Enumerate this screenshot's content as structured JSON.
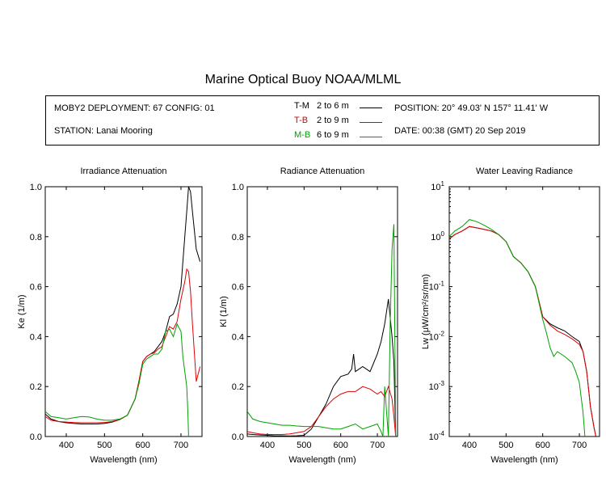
{
  "page_title": "Marine Optical Buoy NOAA/MLML",
  "info": {
    "deployment": "MOBY2 DEPLOYMENT: 67 CONFIG: 01",
    "station": "STATION: Lanai Mooring",
    "position": "POSITION: 20° 49.03' N   157° 11.41' W",
    "date": "DATE: 00:38 (GMT) 20 Sep 2019",
    "legend": [
      {
        "code": "T-M",
        "range": "2 to 6  m",
        "color": "#000000"
      },
      {
        "code": "T-B",
        "range": "2 to 9  m",
        "color": "#e00000"
      },
      {
        "code": "M-B",
        "range": "6 to 9  m",
        "color": "#00a000"
      }
    ]
  },
  "chart_data": [
    {
      "type": "line",
      "title": "Irradiance Attenuation",
      "xlabel": "Wavelength (nm)",
      "ylabel": "Ke  (1/m)",
      "xlim": [
        345,
        755
      ],
      "ylim": [
        0,
        1
      ],
      "xticks": [
        "400",
        "500",
        "600",
        "700"
      ],
      "yticks": [
        "0.0",
        "0.2",
        "0.4",
        "0.6",
        "0.8",
        "1.0"
      ],
      "series": [
        {
          "name": "T-M",
          "color": "#000000",
          "x": [
            345,
            360,
            380,
            400,
            420,
            440,
            460,
            480,
            500,
            520,
            540,
            560,
            580,
            590,
            600,
            610,
            620,
            630,
            640,
            650,
            660,
            670,
            680,
            690,
            700,
            710,
            715,
            720,
            725,
            730,
            740,
            750
          ],
          "y": [
            0.09,
            0.07,
            0.06,
            0.055,
            0.052,
            0.05,
            0.05,
            0.05,
            0.052,
            0.058,
            0.068,
            0.085,
            0.15,
            0.22,
            0.3,
            0.32,
            0.33,
            0.34,
            0.36,
            0.38,
            0.42,
            0.48,
            0.49,
            0.53,
            0.6,
            0.8,
            0.9,
            1.0,
            0.98,
            0.9,
            0.75,
            0.7
          ]
        },
        {
          "name": "T-B",
          "color": "#e00000",
          "x": [
            345,
            360,
            380,
            400,
            420,
            440,
            460,
            480,
            500,
            520,
            540,
            560,
            580,
            590,
            600,
            610,
            620,
            630,
            640,
            650,
            660,
            670,
            680,
            690,
            700,
            710,
            715,
            720,
            725,
            730,
            740,
            750
          ],
          "y": [
            0.08,
            0.065,
            0.06,
            0.058,
            0.056,
            0.055,
            0.055,
            0.055,
            0.056,
            0.06,
            0.068,
            0.085,
            0.15,
            0.22,
            0.3,
            0.32,
            0.33,
            0.335,
            0.35,
            0.36,
            0.4,
            0.44,
            0.43,
            0.46,
            0.55,
            0.62,
            0.67,
            0.66,
            0.58,
            0.45,
            0.22,
            0.28
          ]
        },
        {
          "name": "M-B",
          "color": "#00a000",
          "x": [
            345,
            360,
            380,
            400,
            420,
            440,
            460,
            480,
            500,
            520,
            540,
            560,
            580,
            590,
            600,
            610,
            620,
            630,
            640,
            650,
            660,
            670,
            680,
            690,
            700,
            705,
            710,
            715,
            718,
            720
          ],
          "y": [
            0.1,
            0.08,
            0.075,
            0.07,
            0.075,
            0.08,
            0.078,
            0.07,
            0.065,
            0.065,
            0.07,
            0.085,
            0.15,
            0.21,
            0.29,
            0.31,
            0.32,
            0.33,
            0.33,
            0.35,
            0.42,
            0.43,
            0.4,
            0.45,
            0.42,
            0.32,
            0.26,
            0.2,
            0.1,
            0.0
          ]
        }
      ]
    },
    {
      "type": "line",
      "title": "Radiance Attenuation",
      "xlabel": "Wavelength (nm)",
      "ylabel": "Kl  (1/m)",
      "xlim": [
        345,
        755
      ],
      "ylim": [
        0,
        1
      ],
      "xticks": [
        "400",
        "500",
        "600",
        "700"
      ],
      "yticks": [
        "0.0",
        "0.2",
        "0.4",
        "0.6",
        "0.8",
        "1.0"
      ],
      "series": [
        {
          "name": "T-M",
          "color": "#000000",
          "x": [
            345,
            360,
            380,
            400,
            420,
            440,
            460,
            480,
            500,
            520,
            540,
            560,
            580,
            600,
            620,
            630,
            635,
            640,
            660,
            680,
            700,
            710,
            720,
            730,
            740,
            745,
            750
          ],
          "y": [
            0.01,
            0.008,
            0.006,
            0.005,
            0.003,
            0.003,
            0.002,
            0.003,
            0.005,
            0.03,
            0.08,
            0.13,
            0.2,
            0.24,
            0.25,
            0.27,
            0.33,
            0.26,
            0.28,
            0.26,
            0.33,
            0.38,
            0.45,
            0.55,
            0.4,
            0.3,
            0.0
          ]
        },
        {
          "name": "T-B",
          "color": "#e00000",
          "x": [
            345,
            360,
            380,
            400,
            420,
            440,
            460,
            480,
            500,
            520,
            540,
            560,
            580,
            600,
            620,
            640,
            660,
            680,
            700,
            710,
            720,
            730,
            740,
            745,
            750
          ],
          "y": [
            0.02,
            0.015,
            0.01,
            0.008,
            0.008,
            0.008,
            0.01,
            0.015,
            0.02,
            0.04,
            0.08,
            0.12,
            0.15,
            0.17,
            0.18,
            0.18,
            0.2,
            0.19,
            0.17,
            0.18,
            0.16,
            0.2,
            0.15,
            0.08,
            0.0
          ]
        },
        {
          "name": "M-B",
          "color": "#00a000",
          "x": [
            345,
            360,
            380,
            400,
            420,
            440,
            460,
            480,
            500,
            520,
            540,
            560,
            580,
            600,
            620,
            640,
            660,
            680,
            700,
            710,
            715,
            720,
            730,
            735,
            740,
            745,
            750
          ],
          "y": [
            0.1,
            0.07,
            0.06,
            0.055,
            0.05,
            0.045,
            0.045,
            0.042,
            0.04,
            0.04,
            0.04,
            0.035,
            0.03,
            0.03,
            0.04,
            0.05,
            0.03,
            0.04,
            0.05,
            0.02,
            0.0,
            0.2,
            0.0,
            0.45,
            0.75,
            0.85,
            0.0
          ]
        }
      ]
    },
    {
      "type": "line",
      "title": "Water Leaving Radiance",
      "xlabel": "Wavelength (nm)",
      "ylabel": "Lw  (μW/cm²/sr/nm)",
      "yscale": "log",
      "xlim": [
        345,
        755
      ],
      "ylim": [
        0.0001,
        10
      ],
      "xticks": [
        "400",
        "500",
        "600",
        "700"
      ],
      "yticks": [
        "10^-4",
        "10^-3",
        "10^-2",
        "10^-1",
        "10^0",
        "10^1"
      ],
      "series": [
        {
          "name": "T-M",
          "color": "#000000",
          "x": [
            345,
            360,
            380,
            400,
            420,
            440,
            460,
            480,
            500,
            520,
            540,
            560,
            580,
            600,
            620,
            640,
            660,
            680,
            700,
            710,
            720,
            730,
            740,
            745
          ],
          "y": [
            0.9,
            1.1,
            1.3,
            1.6,
            1.5,
            1.4,
            1.3,
            1.1,
            0.8,
            0.4,
            0.3,
            0.2,
            0.1,
            0.025,
            0.018,
            0.015,
            0.013,
            0.01,
            0.008,
            0.005,
            0.002,
            0.0004,
            0.00015,
            0.0001
          ]
        },
        {
          "name": "T-B",
          "color": "#e00000",
          "x": [
            345,
            360,
            380,
            400,
            420,
            440,
            460,
            480,
            500,
            520,
            540,
            560,
            580,
            600,
            620,
            640,
            660,
            680,
            700,
            710,
            720,
            730,
            740,
            745
          ],
          "y": [
            0.9,
            1.1,
            1.3,
            1.6,
            1.5,
            1.4,
            1.3,
            1.1,
            0.8,
            0.4,
            0.3,
            0.2,
            0.1,
            0.025,
            0.017,
            0.013,
            0.011,
            0.009,
            0.007,
            0.005,
            0.002,
            0.0004,
            0.00015,
            0.0001
          ]
        },
        {
          "name": "M-B",
          "color": "#00a000",
          "x": [
            345,
            360,
            380,
            400,
            420,
            440,
            460,
            480,
            500,
            520,
            540,
            560,
            580,
            600,
            610,
            620,
            630,
            640,
            660,
            680,
            690,
            700,
            710,
            715
          ],
          "y": [
            1.0,
            1.3,
            1.6,
            2.2,
            2.0,
            1.7,
            1.4,
            1.1,
            0.8,
            0.4,
            0.3,
            0.2,
            0.1,
            0.022,
            0.012,
            0.006,
            0.004,
            0.005,
            0.004,
            0.003,
            0.002,
            0.0012,
            0.0003,
            0.0001
          ]
        }
      ]
    }
  ]
}
